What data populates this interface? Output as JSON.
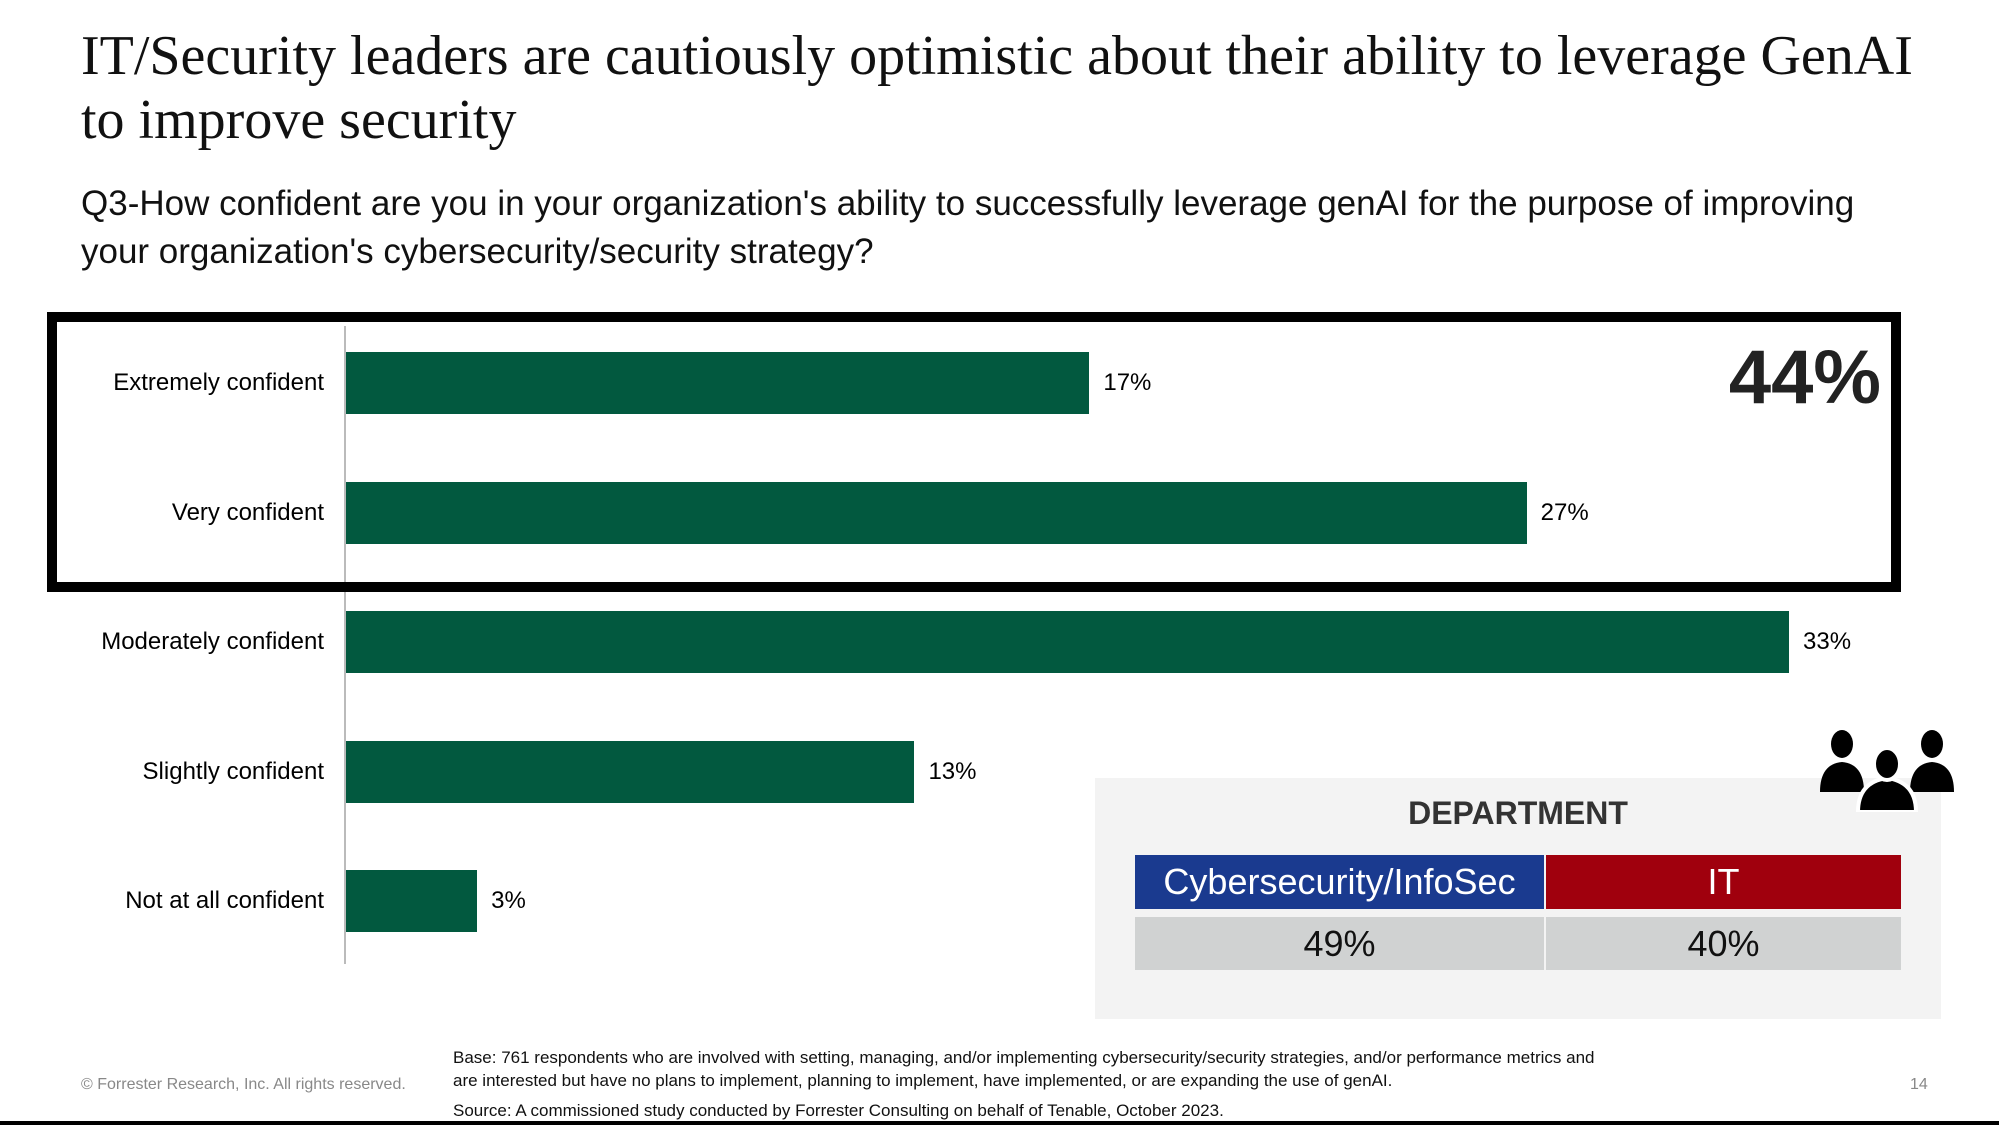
{
  "title": "IT/Security leaders are cautiously optimistic about their ability to leverage GenAI to improve security",
  "subtitle": "Q3-How confident are you in your organization's ability to successfully leverage genAI for the purpose of improving your organization's cybersecurity/security strategy?",
  "chart_data": {
    "type": "bar",
    "orientation": "horizontal",
    "categories": [
      "Extremely confident",
      "Very confident",
      "Moderately confident",
      "Slightly confident",
      "Not at all confident"
    ],
    "values": [
      17,
      27,
      33,
      13,
      3
    ],
    "value_labels": [
      "17%",
      "27%",
      "33%",
      "13%",
      "3%"
    ],
    "xlim": [
      0,
      33
    ],
    "grid": false,
    "bar_color": "#02593f",
    "highlight": {
      "categories": [
        "Extremely confident",
        "Very confident"
      ],
      "label": "44%"
    }
  },
  "department": {
    "title": "DEPARTMENT",
    "icon": "people-group-icon",
    "columns": [
      {
        "label": "Cybersecurity/InfoSec",
        "value": "49%",
        "color": "#1a3a8f"
      },
      {
        "label": "IT",
        "value": "40%",
        "color": "#a0000d"
      }
    ]
  },
  "footer": {
    "copyright": "© Forrester Research, Inc. All rights reserved.",
    "base_line1": "Base: 761 respondents who are involved with setting, managing, and/or implementing cybersecurity/security strategies, and/or performance metrics and",
    "base_line2": "are interested but have no plans to implement, planning to implement, have implemented, or are expanding the use of genAI.",
    "source": "Source: A commissioned study conducted by Forrester Consulting on behalf of Tenable, October 2023.",
    "page": "14"
  }
}
